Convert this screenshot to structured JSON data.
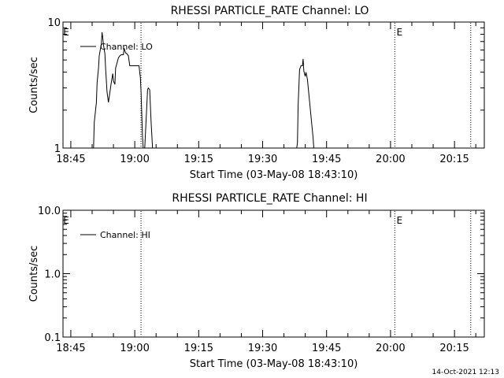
{
  "timestamp": "14-Oct-2021 12:13",
  "chart_data": [
    {
      "type": "line",
      "title": "RHESSI PARTICLE_RATE Channel: LO",
      "xlabel": "Start Time (03-May-08 18:43:10)",
      "ylabel": "Counts/sec",
      "y_scale": "log",
      "ylim": [
        1,
        10
      ],
      "y_ticks": [
        1,
        10
      ],
      "y_tick_labels": [
        "1",
        "10"
      ],
      "xlim": [
        "18:43:10",
        "20:22:00"
      ],
      "x_ticks": [
        "18:45",
        "19:00",
        "19:15",
        "19:30",
        "19:45",
        "20:00",
        "20:15"
      ],
      "x_tick_labels": [
        "18:45",
        "19:00",
        "19:15",
        "19:30",
        "19:45",
        "20:00",
        "20:15"
      ],
      "grid": false,
      "legend_position": "top-left",
      "series": [
        {
          "name": "Channel: LO",
          "color": "#000000",
          "x": [
            "18:49:10",
            "18:50:20",
            "18:50:30",
            "18:51:00",
            "18:51:10",
            "18:51:30",
            "18:51:40",
            "18:52:10",
            "18:52:20",
            "18:52:30",
            "18:52:40",
            "18:53:00",
            "18:53:10",
            "18:53:30",
            "18:53:50",
            "18:54:30",
            "18:54:50",
            "18:55:00",
            "18:55:20",
            "18:55:30",
            "18:56:10",
            "18:56:30",
            "18:56:50",
            "18:57:20",
            "18:57:30",
            "18:57:50",
            "18:58:10",
            "18:58:30",
            "18:58:50",
            "18:59:10",
            "19:00:10",
            "19:01:00",
            "19:01:20",
            "19:01:30",
            "19:01:50",
            "19:02:00",
            "19:02:10",
            "19:02:20",
            "19:03:00",
            "19:03:10",
            "19:03:30",
            "19:03:50",
            "19:04:10",
            "19:04:30",
            "19:38:00",
            "19:38:10",
            "19:38:20",
            "19:38:40",
            "19:39:00",
            "19:39:20",
            "19:39:30",
            "19:39:40",
            "19:40:00",
            "19:40:10",
            "19:40:30",
            "19:41:50",
            "19:42:00"
          ],
          "values": [
            1.0,
            1.0,
            1.6,
            2.3,
            3.3,
            4.3,
            5.4,
            6.7,
            8.3,
            7.5,
            6.6,
            5.6,
            4.3,
            2.8,
            2.3,
            3.3,
            3.9,
            3.4,
            3.2,
            4.3,
            5.2,
            5.4,
            5.5,
            5.5,
            6.2,
            5.7,
            5.6,
            5.4,
            4.5,
            4.5,
            4.5,
            4.5,
            3.6,
            2.7,
            1.2,
            1.0,
            1.0,
            1.0,
            2.9,
            3.0,
            2.9,
            1.6,
            1.0,
            1.0,
            1.0,
            1.1,
            2.2,
            4.2,
            4.5,
            4.5,
            5.1,
            4.1,
            3.7,
            4.0,
            3.5,
            1.2,
            1.0
          ]
        }
      ],
      "annotations": [
        {
          "label": "E",
          "time": "18:43:10",
          "line": false
        },
        {
          "label": "",
          "time": "19:01:28",
          "line": true
        },
        {
          "label": "E",
          "time": "20:01:00",
          "line": true
        },
        {
          "label": "",
          "time": "20:18:49",
          "line": true
        }
      ]
    },
    {
      "type": "line",
      "title": "RHESSI PARTICLE_RATE Channel: HI",
      "xlabel": "Start Time (03-May-08 18:43:10)",
      "ylabel": "Counts/sec",
      "y_scale": "log",
      "ylim": [
        0.1,
        10
      ],
      "y_ticks": [
        0.1,
        1,
        10
      ],
      "y_tick_labels": [
        "0.1",
        "1.0",
        "10.0"
      ],
      "xlim": [
        "18:43:10",
        "20:22:00"
      ],
      "x_ticks": [
        "18:45",
        "19:00",
        "19:15",
        "19:30",
        "19:45",
        "20:00",
        "20:15"
      ],
      "x_tick_labels": [
        "18:45",
        "19:00",
        "19:15",
        "19:30",
        "19:45",
        "20:00",
        "20:15"
      ],
      "grid": false,
      "legend_position": "top-left",
      "series": [
        {
          "name": "Channel: HI",
          "color": "#000000",
          "x": [],
          "values": []
        }
      ],
      "annotations": [
        {
          "label": "E",
          "time": "18:43:10",
          "line": false
        },
        {
          "label": "",
          "time": "19:01:28",
          "line": true
        },
        {
          "label": "E",
          "time": "20:01:00",
          "line": true
        },
        {
          "label": "",
          "time": "20:18:49",
          "line": true
        }
      ]
    }
  ]
}
